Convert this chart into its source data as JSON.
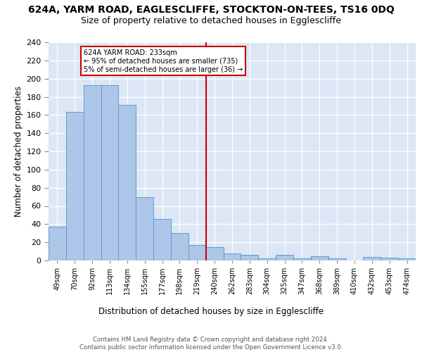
{
  "title": "624A, YARM ROAD, EAGLESCLIFFE, STOCKTON-ON-TEES, TS16 0DQ",
  "subtitle": "Size of property relative to detached houses in Egglescliffe",
  "xlabel": "Distribution of detached houses by size in Egglescliffe",
  "ylabel": "Number of detached properties",
  "categories": [
    "49sqm",
    "70sqm",
    "92sqm",
    "113sqm",
    "134sqm",
    "155sqm",
    "177sqm",
    "198sqm",
    "219sqm",
    "240sqm",
    "262sqm",
    "283sqm",
    "304sqm",
    "325sqm",
    "347sqm",
    "368sqm",
    "389sqm",
    "410sqm",
    "432sqm",
    "453sqm",
    "474sqm"
  ],
  "values": [
    37,
    163,
    193,
    193,
    171,
    70,
    46,
    30,
    17,
    15,
    8,
    6,
    2,
    6,
    2,
    5,
    2,
    0,
    4,
    3,
    2
  ],
  "bar_color": "#aec6e8",
  "bar_edge_color": "#5a9fd4",
  "vline_x_index": 9,
  "vline_color": "#cc0000",
  "annotation_text": "624A YARM ROAD: 233sqm\n← 95% of detached houses are smaller (735)\n5% of semi-detached houses are larger (36) →",
  "annotation_box_color": "#cc0000",
  "ylim": [
    0,
    240
  ],
  "yticks": [
    0,
    20,
    40,
    60,
    80,
    100,
    120,
    140,
    160,
    180,
    200,
    220,
    240
  ],
  "background_color": "#dce6f5",
  "footer": "Contains HM Land Registry data © Crown copyright and database right 2024.\nContains public sector information licensed under the Open Government Licence v3.0.",
  "title_fontsize": 10,
  "subtitle_fontsize": 9
}
